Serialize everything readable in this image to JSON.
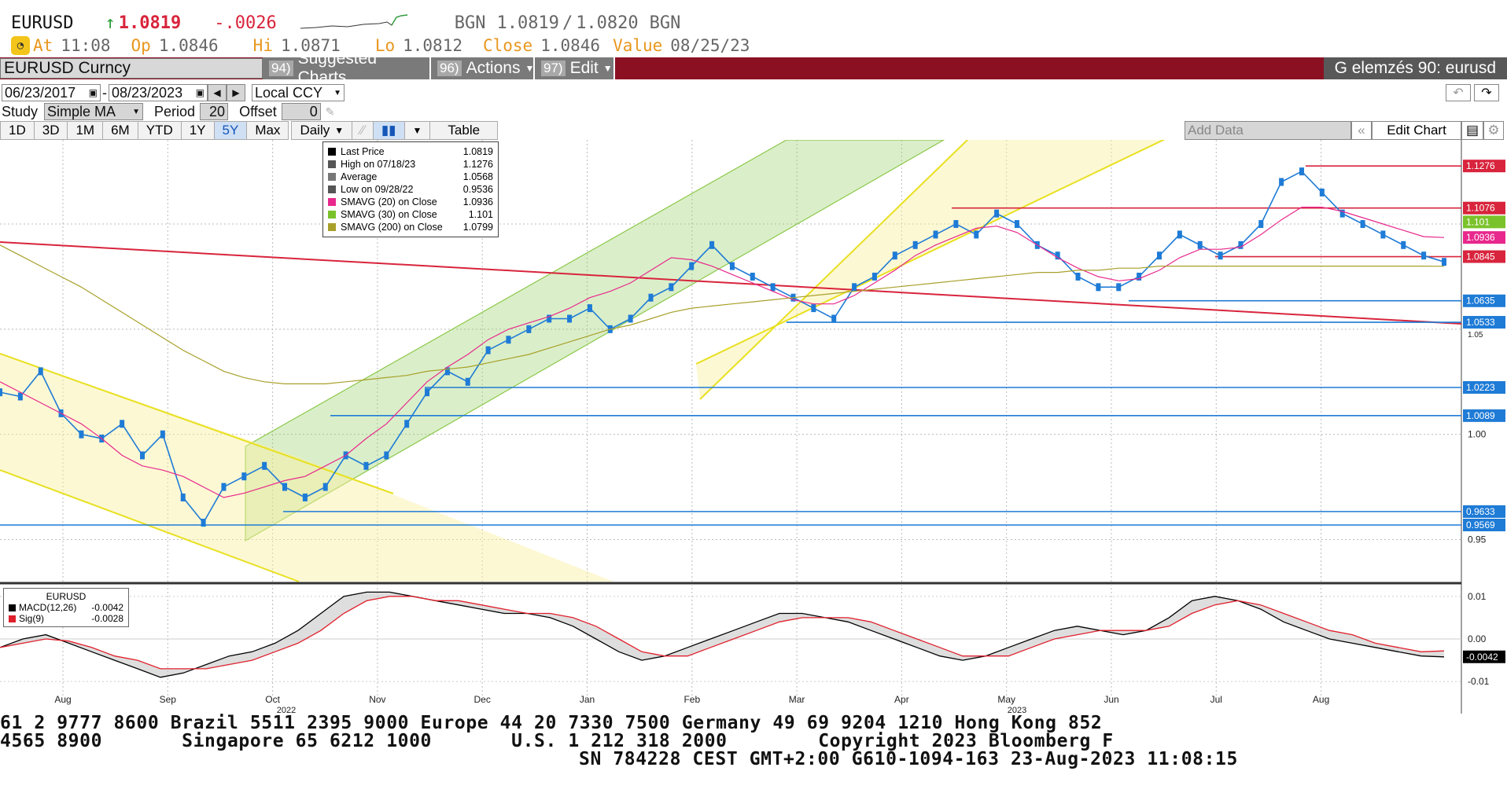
{
  "quote": {
    "ticker": "EURUSD",
    "arrow": "↑",
    "last": "1.0819",
    "change": "-.0026",
    "bgn_label": "BGN",
    "bid": "1.0819",
    "ask": "1.0820",
    "bgn_label2": "BGN",
    "at_label": "At",
    "at_time": "11:08",
    "op_label": "Op",
    "op": "1.0846",
    "hi_label": "Hi",
    "hi": "1.0871",
    "lo_label": "Lo",
    "lo": "1.0812",
    "close_label": "Close",
    "close": "1.0846",
    "value_label": "Value",
    "value_date": "08/25/23"
  },
  "toolbar": {
    "security": "EURUSD Curncy",
    "suggested_num": "94)",
    "suggested": "Suggested Charts",
    "actions_num": "96)",
    "actions": "Actions",
    "edit_num": "97)",
    "edit": "Edit",
    "title": "G elemzés 90: eurusd"
  },
  "controls": {
    "start_date": "06/23/2017",
    "end_date": "08/23/2023",
    "currency": "Local CCY",
    "study_label": "Study",
    "study": "Simple MA",
    "period_label": "Period",
    "period": "20",
    "offset_label": "Offset",
    "offset": "0",
    "add_data": "Add Data",
    "edit_chart": "Edit Chart",
    "table": "Table",
    "frequency": "Daily"
  },
  "ranges": [
    "1D",
    "3D",
    "1M",
    "6M",
    "YTD",
    "1Y",
    "5Y",
    "Max"
  ],
  "selected_range": "5Y",
  "legend": [
    {
      "label": "Last Price",
      "value": "1.0819",
      "color": "#000000"
    },
    {
      "label": "High on 07/18/23",
      "value": "1.1276",
      "color": "#555555"
    },
    {
      "label": "Average",
      "value": "1.0568",
      "color": "#777777"
    },
    {
      "label": "Low on 09/28/22",
      "value": "0.9536",
      "color": "#555555"
    },
    {
      "label": "SMAVG (20)  on Close",
      "value": "1.0936",
      "color": "#e8288c"
    },
    {
      "label": "SMAVG (30)  on Close",
      "value": "1.101",
      "color": "#7ac22a"
    },
    {
      "label": "SMAVG (200)  on Close",
      "value": "1.0799",
      "color": "#a8a02a"
    }
  ],
  "macd_legend": {
    "title": "EURUSD",
    "macd_label": "MACD(12,26)",
    "macd_value": "-0.0042",
    "sig_label": "Sig(9)",
    "sig_value": "-0.0028"
  },
  "chart_data": {
    "type": "line",
    "title": "EURUSD",
    "y_ticks": [
      "1.05",
      "1.00",
      "0.95"
    ],
    "ylim": [
      0.93,
      1.14
    ],
    "x_ticks": [
      "Aug",
      "Sep",
      "Oct",
      "Nov",
      "Dec",
      "Jan",
      "Feb",
      "Mar",
      "Apr",
      "May",
      "Jun",
      "Jul",
      "Aug"
    ],
    "year_labels": [
      "2022",
      "2023"
    ],
    "price_tags": [
      {
        "label": "1.1276",
        "value": 1.1276,
        "color": "#d8243c"
      },
      {
        "label": "1.1076",
        "value": 1.1076,
        "color": "#d8243c"
      },
      {
        "label": "1.101",
        "value": 1.101,
        "color": "#7ac22a"
      },
      {
        "label": "1.0936",
        "value": 1.0936,
        "color": "#e8288c"
      },
      {
        "label": "1.0845",
        "value": 1.0845,
        "color": "#d8243c"
      },
      {
        "label": "1.0635",
        "value": 1.0635,
        "color": "#1e7bd6"
      },
      {
        "label": "1.0533",
        "value": 1.0533,
        "color": "#1e7bd6"
      },
      {
        "label": "1.0223",
        "value": 1.0223,
        "color": "#1e7bd6"
      },
      {
        "label": "1.0089",
        "value": 1.0089,
        "color": "#1e7bd6"
      },
      {
        "label": "0.9633",
        "value": 0.9633,
        "color": "#1e7bd6"
      },
      {
        "label": "0.9569",
        "value": 0.9569,
        "color": "#1e7bd6"
      }
    ],
    "series": [
      {
        "name": "Last Price",
        "values": [
          1.02,
          1.018,
          1.03,
          1.01,
          1.0,
          0.998,
          1.005,
          0.99,
          1.0,
          0.97,
          0.958,
          0.975,
          0.98,
          0.985,
          0.975,
          0.97,
          0.975,
          0.99,
          0.985,
          0.99,
          1.005,
          1.02,
          1.03,
          1.025,
          1.04,
          1.045,
          1.05,
          1.055,
          1.055,
          1.06,
          1.05,
          1.055,
          1.065,
          1.07,
          1.08,
          1.09,
          1.08,
          1.075,
          1.07,
          1.065,
          1.06,
          1.055,
          1.07,
          1.075,
          1.085,
          1.09,
          1.095,
          1.1,
          1.095,
          1.105,
          1.1,
          1.09,
          1.085,
          1.075,
          1.07,
          1.07,
          1.075,
          1.085,
          1.095,
          1.09,
          1.085,
          1.09,
          1.1,
          1.12,
          1.125,
          1.115,
          1.105,
          1.1,
          1.095,
          1.09,
          1.085,
          1.082
        ]
      },
      {
        "name": "SMAVG (20)  on Close",
        "values": [
          1.025,
          1.02,
          1.015,
          1.01,
          1.005,
          0.998,
          0.99,
          0.985,
          0.983,
          0.98,
          0.975,
          0.97,
          0.972,
          0.975,
          0.978,
          0.98,
          0.985,
          0.99,
          0.998,
          1.005,
          1.015,
          1.025,
          1.032,
          1.038,
          1.045,
          1.05,
          1.053,
          1.056,
          1.06,
          1.065,
          1.068,
          1.072,
          1.078,
          1.084,
          1.083,
          1.08,
          1.076,
          1.072,
          1.068,
          1.064,
          1.062,
          1.062,
          1.066,
          1.072,
          1.078,
          1.085,
          1.09,
          1.094,
          1.098,
          1.099,
          1.096,
          1.09,
          1.084,
          1.079,
          1.075,
          1.073,
          1.074,
          1.078,
          1.084,
          1.088,
          1.088,
          1.089,
          1.095,
          1.102,
          1.108,
          1.108,
          1.106,
          1.103,
          1.1,
          1.097,
          1.094,
          1.0936
        ]
      },
      {
        "name": "SMAVG (200)  on Close",
        "values": [
          1.09,
          1.085,
          1.08,
          1.075,
          1.07,
          1.064,
          1.058,
          1.052,
          1.046,
          1.04,
          1.035,
          1.03,
          1.027,
          1.025,
          1.024,
          1.024,
          1.024,
          1.025,
          1.026,
          1.027,
          1.028,
          1.03,
          1.031,
          1.032,
          1.034,
          1.036,
          1.038,
          1.041,
          1.044,
          1.047,
          1.05,
          1.052,
          1.055,
          1.058,
          1.06,
          1.061,
          1.062,
          1.063,
          1.064,
          1.065,
          1.066,
          1.067,
          1.068,
          1.069,
          1.07,
          1.071,
          1.072,
          1.073,
          1.074,
          1.075,
          1.076,
          1.077,
          1.077,
          1.078,
          1.078,
          1.079,
          1.079,
          1.08,
          1.08,
          1.08,
          1.08,
          1.08,
          1.08,
          1.08,
          1.08,
          1.08,
          1.08,
          1.08,
          1.08,
          1.08,
          1.08,
          1.0799
        ]
      }
    ],
    "macd": {
      "y_ticks": [
        "0.01",
        "0.00",
        "-0.01"
      ],
      "ylim": [
        -0.012,
        0.012
      ],
      "current_tag": "-0.0042",
      "macd_values": [
        -0.002,
        0.0,
        0.001,
        -0.001,
        -0.003,
        -0.005,
        -0.007,
        -0.009,
        -0.008,
        -0.006,
        -0.004,
        -0.003,
        -0.001,
        0.002,
        0.006,
        0.01,
        0.011,
        0.011,
        0.01,
        0.009,
        0.008,
        0.007,
        0.006,
        0.006,
        0.005,
        0.003,
        0.0,
        -0.003,
        -0.005,
        -0.004,
        -0.002,
        0.0,
        0.002,
        0.004,
        0.006,
        0.006,
        0.005,
        0.004,
        0.002,
        0.0,
        -0.002,
        -0.004,
        -0.005,
        -0.004,
        -0.002,
        0.0,
        0.002,
        0.003,
        0.002,
        0.001,
        0.002,
        0.005,
        0.009,
        0.01,
        0.009,
        0.007,
        0.004,
        0.002,
        0.0,
        -0.001,
        -0.002,
        -0.003,
        -0.004,
        -0.0042
      ],
      "sig_values": [
        -0.002,
        -0.001,
        0.0,
        -0.0005,
        -0.002,
        -0.004,
        -0.005,
        -0.007,
        -0.007,
        -0.007,
        -0.006,
        -0.005,
        -0.003,
        -0.001,
        0.002,
        0.006,
        0.009,
        0.01,
        0.01,
        0.009,
        0.009,
        0.008,
        0.007,
        0.006,
        0.006,
        0.005,
        0.003,
        0.0,
        -0.003,
        -0.004,
        -0.004,
        -0.002,
        0.0,
        0.002,
        0.004,
        0.005,
        0.005,
        0.005,
        0.004,
        0.002,
        0.0,
        -0.002,
        -0.004,
        -0.004,
        -0.004,
        -0.002,
        0.0,
        0.001,
        0.002,
        0.002,
        0.002,
        0.003,
        0.006,
        0.008,
        0.009,
        0.008,
        0.006,
        0.004,
        0.002,
        0.001,
        -0.001,
        -0.002,
        -0.003,
        -0.0028
      ]
    }
  },
  "footer": {
    "line1": "61 2 9777 8600 Brazil 5511 2395 9000 Europe 44 20 7330 7500 Germany 49 69 9204 1210 Hong Kong 852",
    "line2": "4565 8900       Singapore 65 6212 1000       U.S. 1 212 318 2000        Copyright 2023 Bloomberg F",
    "line3": "SN 784228 CEST GMT+2:00 G610-1094-163 23-Aug-2023 11:08:15"
  }
}
